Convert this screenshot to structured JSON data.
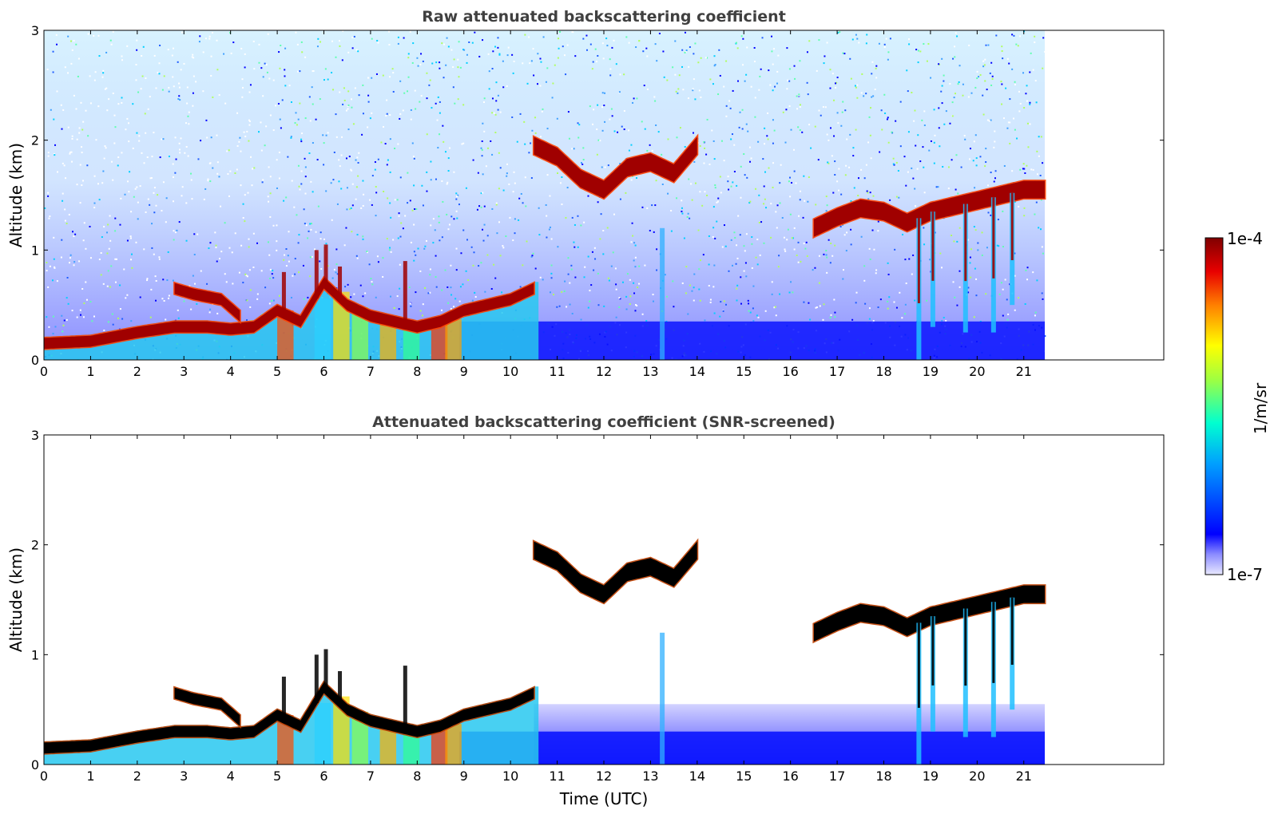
{
  "chart_data": [
    {
      "type": "heatmap",
      "title": "Raw attenuated backscattering coefficient",
      "xlabel": "",
      "ylabel": "Altitude (km)",
      "xlim": [
        0,
        24
      ],
      "ylim": [
        0,
        3
      ],
      "xticks": [
        "0",
        "1",
        "2",
        "3",
        "4",
        "5",
        "6",
        "7",
        "8",
        "9",
        "10",
        "11",
        "12",
        "13",
        "14",
        "15",
        "16",
        "17",
        "18",
        "19",
        "20",
        "21"
      ],
      "yticks": [
        "0",
        "1",
        "2",
        "3"
      ],
      "data_end_time": 21.45,
      "grid": false,
      "layers": [
        {
          "kind": "boundary_layer",
          "x": [
            0,
            1,
            2,
            2.8,
            3.5,
            4,
            4.5,
            5,
            5.5,
            6,
            6.5,
            7,
            7.5,
            8,
            8.5,
            9,
            9.5,
            10,
            10.5
          ],
          "y": [
            0.15,
            0.17,
            0.25,
            0.3,
            0.3,
            0.28,
            0.3,
            0.45,
            0.35,
            0.7,
            0.5,
            0.4,
            0.35,
            0.3,
            0.35,
            0.45,
            0.5,
            0.55,
            0.65
          ]
        },
        {
          "kind": "elevated_layer",
          "x": [
            2.8,
            3.2,
            3.8,
            4.2
          ],
          "y": [
            0.65,
            0.6,
            0.55,
            0.4
          ]
        },
        {
          "kind": "cloud_layer",
          "x": [
            10.5,
            11,
            11.5,
            12,
            12.5,
            13,
            13.5,
            14
          ],
          "y": [
            1.95,
            1.85,
            1.65,
            1.55,
            1.75,
            1.8,
            1.7,
            1.95
          ]
        },
        {
          "kind": "cloud_layer",
          "x": [
            16.5,
            17,
            17.5,
            18,
            18.5,
            19,
            19.5,
            20,
            20.5,
            21,
            21.45
          ],
          "y": [
            1.2,
            1.3,
            1.38,
            1.35,
            1.25,
            1.35,
            1.4,
            1.45,
            1.5,
            1.55,
            1.55
          ]
        }
      ]
    },
    {
      "type": "heatmap",
      "title": "Attenuated backscattering coefficient (SNR-screened)",
      "xlabel": "Time (UTC)",
      "ylabel": "Altitude (km)",
      "xlim": [
        0,
        24
      ],
      "ylim": [
        0,
        3
      ],
      "xticks": [
        "0",
        "1",
        "2",
        "3",
        "4",
        "5",
        "6",
        "7",
        "8",
        "9",
        "10",
        "11",
        "12",
        "13",
        "14",
        "15",
        "16",
        "17",
        "18",
        "19",
        "20",
        "21"
      ],
      "yticks": [
        "0",
        "1",
        "2",
        "3"
      ],
      "data_end_time": 21.45,
      "grid": false
    }
  ],
  "colorbar": {
    "label": "1/m/sr",
    "max_label": "1e-4",
    "min_label": "1e-7",
    "colormap": "jet"
  }
}
